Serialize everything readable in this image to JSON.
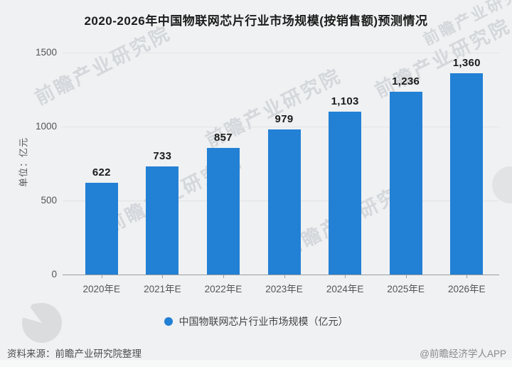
{
  "title": "2020-2026年中国物联网芯片行业市场规模(按销售额)预测情况",
  "chart_data": {
    "type": "bar",
    "title": "2020-2026年中国物联网芯片行业市场规模(按销售额)预测情况",
    "categories": [
      "2020年E",
      "2021年E",
      "2022年E",
      "2023年E",
      "2024年E",
      "2025年E",
      "2026年E"
    ],
    "values": [
      622,
      733,
      857,
      979,
      1103,
      1236,
      1360
    ],
    "value_labels": [
      "622",
      "733",
      "857",
      "979",
      "1,103",
      "1,236",
      "1,360"
    ],
    "ylabel": "单位：亿元",
    "xlabel": "",
    "ylim": [
      0,
      1500
    ],
    "yticks": [
      0,
      500,
      1000,
      1500
    ],
    "grid": true,
    "legend": "中国物联网芯片行业市场规模（亿元）",
    "legend_position": "bottom",
    "bar_color": "#2280d5"
  },
  "colors": {
    "bar": "#2280d5",
    "background": "#eff1f2",
    "grid": "#e1e3e5",
    "axis": "#9b9fa3"
  },
  "legend": {
    "label": "中国物联网芯片行业市场规模（亿元）",
    "dot_color": "#2280d5"
  },
  "footer": {
    "source": "资料来源：前瞻产业研究院整理",
    "credit": "@前瞻经济学人APP"
  },
  "watermark": {
    "text": "前瞻产业研究院"
  }
}
